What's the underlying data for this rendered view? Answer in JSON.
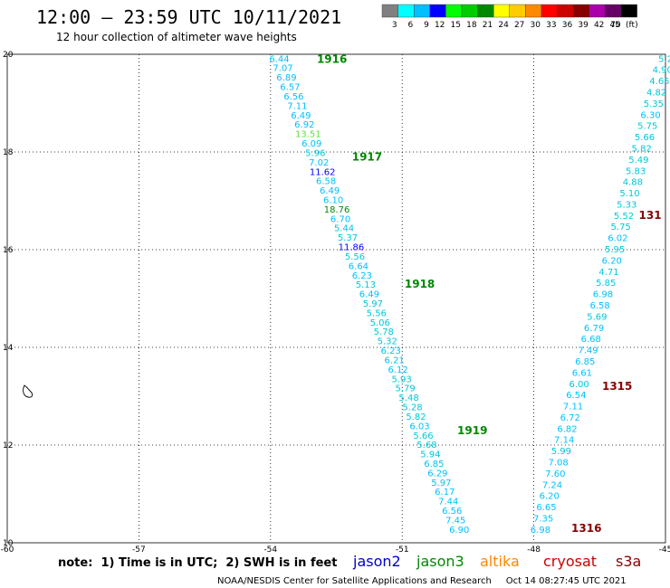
{
  "chart_data": {
    "type": "scatter",
    "title": "12:00 — 23:59 UTC 10/11/2021",
    "subtitle": "12 hour collection of altimeter wave heights",
    "units": "(ft)",
    "xlim": [
      -60,
      -45
    ],
    "ylim": [
      10,
      20
    ],
    "x_ticks": [
      "-60",
      "-57",
      "-54",
      "-51",
      "-48",
      "-45"
    ],
    "y_ticks": [
      "10",
      "12",
      "14",
      "16",
      "18",
      "20"
    ],
    "grid": true,
    "legend_bins": [
      {
        "label": "3",
        "color": "#808080"
      },
      {
        "label": "6",
        "color": "#00ffff"
      },
      {
        "label": "9",
        "color": "#00c0ff"
      },
      {
        "label": "12",
        "color": "#0000ff"
      },
      {
        "label": "15",
        "color": "#00ff00"
      },
      {
        "label": "18",
        "color": "#00cc00"
      },
      {
        "label": "21",
        "color": "#008800"
      },
      {
        "label": "24",
        "color": "#ffff00"
      },
      {
        "label": "27",
        "color": "#ffcc00"
      },
      {
        "label": "30",
        "color": "#ff8800"
      },
      {
        "label": "33",
        "color": "#ff0000"
      },
      {
        "label": "36",
        "color": "#cc0000"
      },
      {
        "label": "39",
        "color": "#880000"
      },
      {
        "label": "42",
        "color": "#aa00aa"
      },
      {
        "label": "45",
        "color": "#660066"
      },
      {
        "label": "70",
        "color": "#000000"
      }
    ],
    "time_labels": [
      {
        "text": "1916",
        "lon": -52.6,
        "lat": 19.9,
        "color": "#008800"
      },
      {
        "text": "1917",
        "lon": -51.8,
        "lat": 17.9,
        "color": "#008800"
      },
      {
        "text": "1918",
        "lon": -50.6,
        "lat": 15.3,
        "color": "#008800"
      },
      {
        "text": "1919",
        "lon": -49.4,
        "lat": 12.3,
        "color": "#008800"
      },
      {
        "text": "1315",
        "lon": -46.1,
        "lat": 13.2,
        "color": "#880000"
      },
      {
        "text": "1316",
        "lon": -46.8,
        "lat": 10.3,
        "color": "#880000"
      },
      {
        "text": "131",
        "lon": -45.35,
        "lat": 16.7,
        "color": "#880000"
      }
    ],
    "series": [
      {
        "name": "jason3",
        "start": [
          -53.8,
          19.92
        ],
        "end": [
          -49.7,
          10.28
        ],
        "values": [
          "6.44",
          "7.07",
          "6.89",
          "6.57",
          "6.56",
          "7.11",
          "6.49",
          "6.92",
          "13.51",
          "6.09",
          "5.96",
          "7.02",
          "11.62",
          "6.58",
          "6.49",
          "6.10",
          "18.76",
          "6.70",
          "5.44",
          "5.37",
          "11.86",
          "5.56",
          "6.64",
          "6.23",
          "5.13",
          "6.49",
          "5.97",
          "5.56",
          "5.06",
          "5.78",
          "5.32",
          "6.23",
          "6.21",
          "6.12",
          "5.93",
          "5.79",
          "5.48",
          "5.28",
          "5.82",
          "6.03",
          "5.66",
          "5.68",
          "5.94",
          "6.85",
          "6.29",
          "5.97",
          "6.17",
          "7.44",
          "6.56",
          "7.45",
          "6.90"
        ]
      },
      {
        "name": "cryosat",
        "start": [
          -45.0,
          19.92
        ],
        "end": [
          -47.85,
          10.28
        ],
        "values": [
          "5.2",
          "4.90",
          "4.65",
          "4.82",
          "5.35",
          "6.30",
          "5.75",
          "5.66",
          "5.82",
          "5.49",
          "5.83",
          "4.88",
          "5.10",
          "5.33",
          "5.52",
          "5.75",
          "6.02",
          "5.95",
          "6.20",
          "4.71",
          "5.85",
          "6.98",
          "6.58",
          "5.69",
          "6.79",
          "6.68",
          "7.49",
          "6.85",
          "6.61",
          "6.00",
          "6.54",
          "7.11",
          "6.72",
          "6.82",
          "7.14",
          "5.99",
          "7.08",
          "7.60",
          "7.24",
          "6.20",
          "6.65",
          "7.35",
          "6.98"
        ]
      }
    ],
    "satellite_legend": [
      {
        "text": "jason2",
        "color": "#0000cc"
      },
      {
        "text": "jason3",
        "color": "#008800"
      },
      {
        "text": "altika",
        "color": "#ff8800"
      },
      {
        "text": "cryosat",
        "color": "#cc0000"
      },
      {
        "text": "s3a",
        "color": "#880000"
      }
    ]
  },
  "note": "note:  1) Time is in UTC;  2) SWH is in feet",
  "footer": "NOAA/NESDIS Center for Satellite Applications and Research     Oct 14 08:27:45 UTC 2021"
}
